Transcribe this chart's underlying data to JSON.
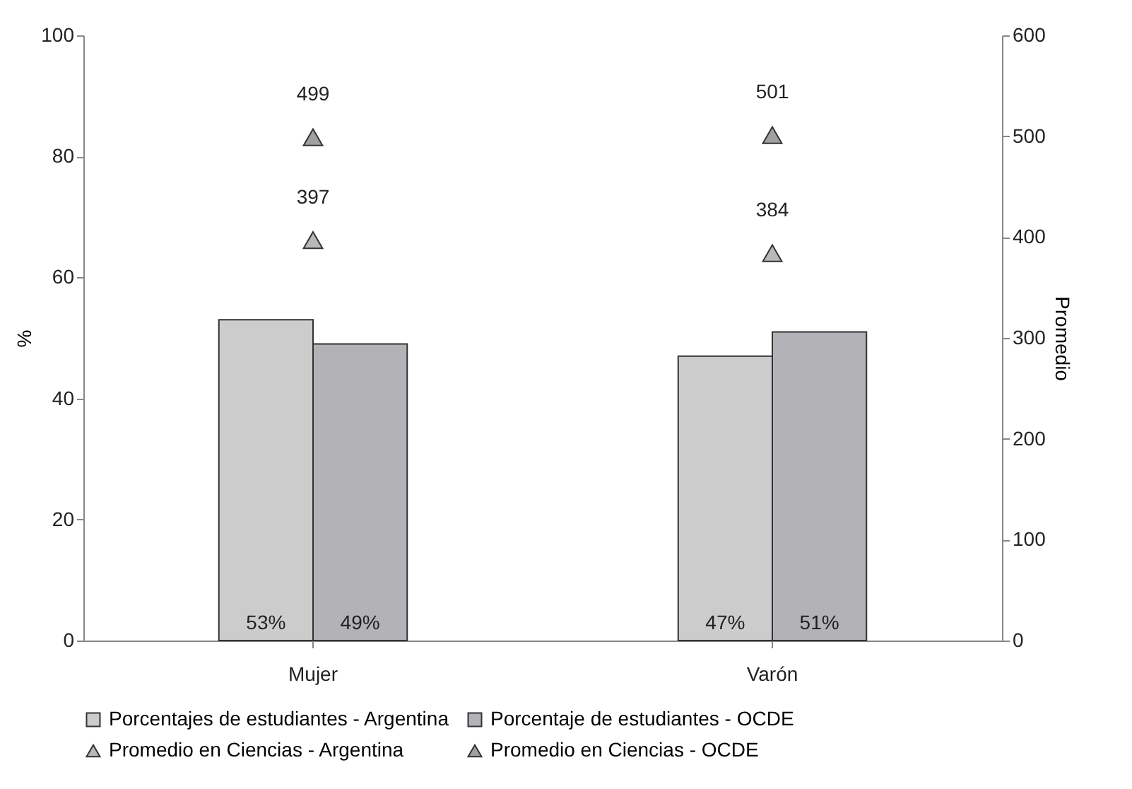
{
  "chart_data": {
    "type": "bar",
    "categories": [
      "Mujer",
      "Varón"
    ],
    "ylabel": "%",
    "y2label": "Promedio",
    "ylim": [
      0,
      100
    ],
    "yticks": [
      0,
      20,
      40,
      60,
      80,
      100
    ],
    "y2lim": [
      0,
      600
    ],
    "y2ticks": [
      0,
      100,
      200,
      300,
      400,
      500,
      600
    ],
    "grid": false,
    "legend": "bottom",
    "series": [
      {
        "name": "Porcentajes de estudiantes - Argentina",
        "color": "#cccccc",
        "values": [
          53,
          47
        ],
        "value_labels": [
          "53%",
          "47%"
        ]
      },
      {
        "name": "Porcentaje de estudiantes - OCDE",
        "color": "#b3b3b7",
        "values": [
          49,
          51
        ],
        "value_labels": [
          "49%",
          "51%"
        ]
      },
      {
        "name": "Promedio en Ciencias - Argentina",
        "type": "scatter",
        "axis": "y2",
        "marker": "triangle",
        "color": "#b8b8b8",
        "x": [
          "Mujer",
          "Varón"
        ],
        "values": [
          397,
          384
        ],
        "value_labels": [
          "397",
          "384"
        ]
      },
      {
        "name": "Promedio en Ciencias - OCDE",
        "type": "scatter",
        "axis": "y2",
        "marker": "triangle",
        "color": "#a0a0a0",
        "x": [
          "Mujer",
          "Varón"
        ],
        "values": [
          499,
          501
        ],
        "value_labels": [
          "499",
          "501"
        ]
      }
    ]
  }
}
